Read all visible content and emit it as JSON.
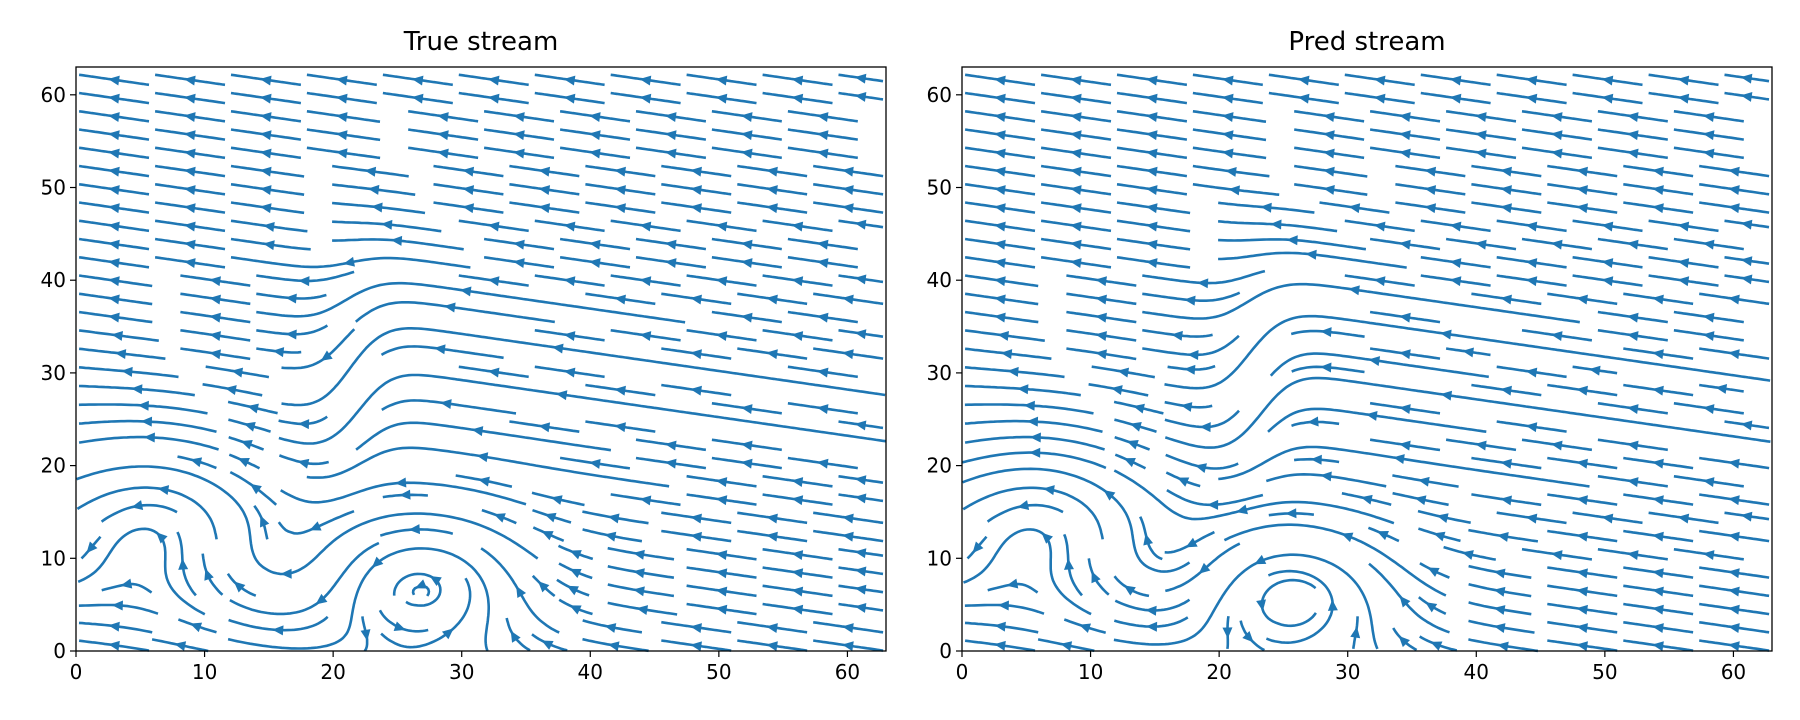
{
  "chart_data": [
    {
      "type": "streamplot",
      "title": "True stream",
      "color": "#1f77b4",
      "xlim": [
        0,
        63
      ],
      "ylim": [
        0,
        63
      ],
      "xticks": [
        0,
        10,
        20,
        30,
        40,
        50,
        60
      ],
      "yticks": [
        0,
        10,
        20,
        30,
        40,
        50,
        60
      ]
    },
    {
      "type": "streamplot",
      "title": "Pred stream",
      "color": "#1f77b4",
      "xlim": [
        0,
        63
      ],
      "ylim": [
        0,
        63
      ],
      "xticks": [
        0,
        10,
        20,
        30,
        40,
        50,
        60
      ],
      "yticks": [
        0,
        10,
        20,
        30,
        40,
        50,
        60
      ]
    }
  ]
}
